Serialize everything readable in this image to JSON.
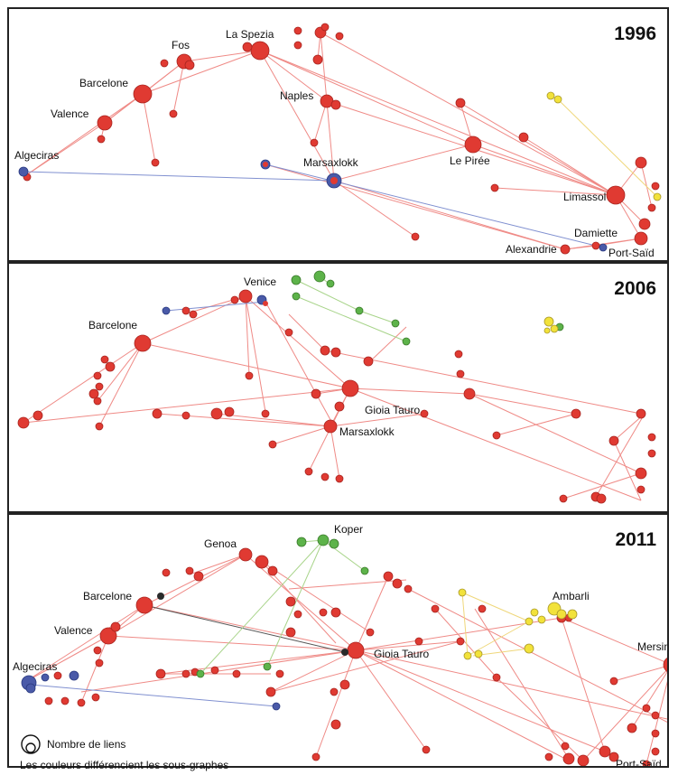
{
  "panels": [
    {
      "year": "1996",
      "labels": [
        "La Spezia",
        "Fos",
        "Barcelone",
        "Valence",
        "Algeciras",
        "Naples",
        "Marsaxlokk",
        "Le Pirée",
        "Limassol",
        "Damiette",
        "Alexandrie",
        "Port-Saïd"
      ]
    },
    {
      "year": "2006",
      "labels": [
        "Venice",
        "Barcelone",
        "Gioia Tauro",
        "Marsaxlokk"
      ]
    },
    {
      "year": "2011",
      "labels": [
        "Koper",
        "Genoa",
        "Barcelone",
        "Valence",
        "Algeciras",
        "Gioia Tauro",
        "Ambarli",
        "Mersin",
        "Port-Saïd"
      ]
    }
  ],
  "legend": {
    "links_label": "Nombre de liens",
    "colors_note": "Les couleurs différencient les sous-graphes"
  },
  "colors": {
    "red_node": "#e03a32",
    "red_edge": "#ef8a86",
    "blue_node": "#4a5aa8",
    "blue_edge": "#8090d0",
    "green_node": "#5db34a",
    "green_edge": "#a8d48a",
    "yellow_node": "#f2e23a",
    "yellow_edge": "#efd77a",
    "dark_node": "#2a2a2a"
  }
}
